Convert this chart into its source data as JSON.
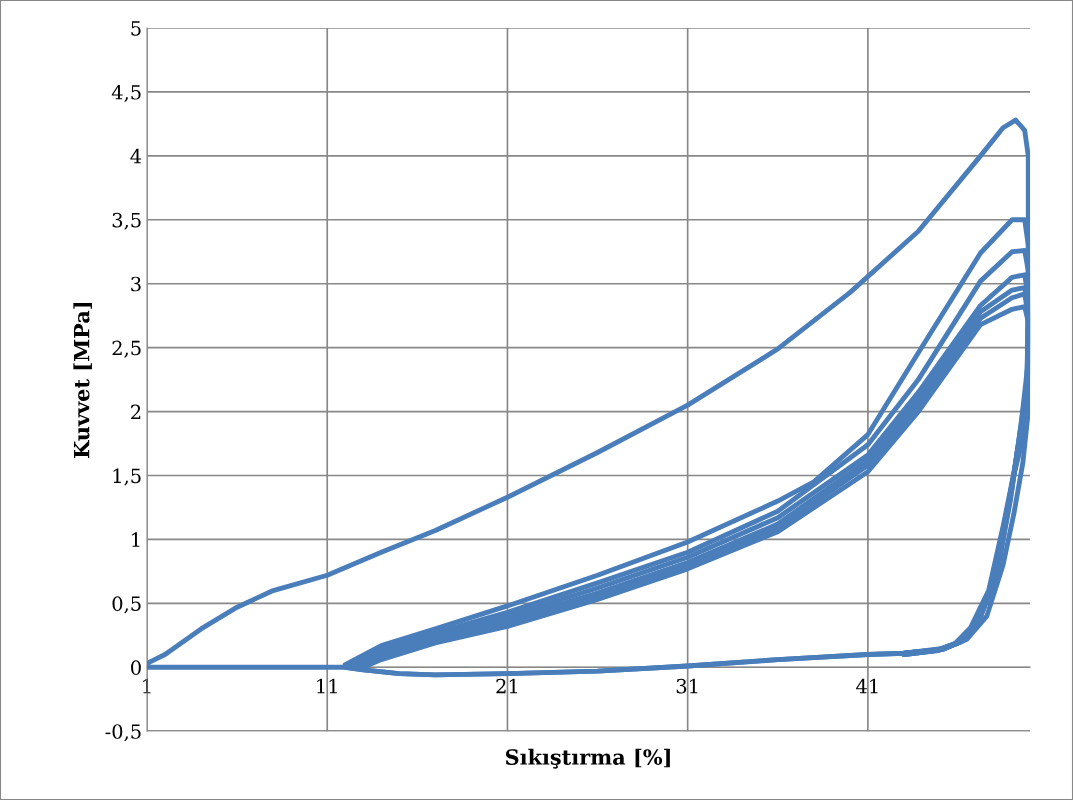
{
  "chart_data": {
    "type": "line",
    "xlabel": "Sıkıştırma [%]",
    "ylabel": "Kuvvet [MPa]",
    "xlim": [
      1,
      50
    ],
    "xticks": [
      1,
      11,
      21,
      31,
      41
    ],
    "ylim": [
      -0.5,
      5
    ],
    "yticks": [
      {
        "value": -0.5,
        "label": "-0,5"
      },
      0,
      {
        "value": 0.5,
        "label": "0,5"
      },
      1,
      {
        "value": 1.5,
        "label": "1,5"
      },
      2,
      {
        "value": 2.5,
        "label": "2,5"
      },
      3,
      {
        "value": 3.5,
        "label": "3,5"
      },
      4,
      {
        "value": 4.5,
        "label": "4,5"
      },
      5
    ],
    "grid": true,
    "marker": "none",
    "line_style": "solid",
    "series": [
      {
        "color": "#4a7ebb",
        "x": [
          1,
          2,
          4,
          6,
          8,
          11,
          14,
          17,
          21,
          26,
          31,
          36,
          40,
          43.8,
          47.25,
          48.5,
          49.2,
          49.7,
          49.9,
          49.9,
          49.6,
          49.1,
          48.5,
          47.6,
          46.5,
          45.3,
          43,
          41,
          36,
          31,
          26,
          21,
          17,
          15,
          13,
          12,
          11,
          1
        ],
        "values": [
          0.03,
          0.1,
          0.3,
          0.47,
          0.6,
          0.72,
          0.9,
          1.07,
          1.33,
          1.68,
          2.05,
          2.49,
          2.93,
          3.41,
          4.0,
          4.22,
          4.28,
          4.2,
          4.0,
          2.0,
          1.6,
          1.2,
          0.8,
          0.4,
          0.22,
          0.15,
          0.11,
          0.1,
          0.06,
          0.01,
          -0.03,
          -0.05,
          -0.06,
          -0.05,
          -0.02,
          0,
          0,
          0
        ]
      },
      {
        "color": "#4a7ebb",
        "x": [
          12,
          14,
          17,
          21,
          26,
          31,
          36,
          38,
          41,
          43.8,
          47.25,
          49,
          49.7,
          49.9,
          49.9,
          49.5,
          49,
          48.2,
          47.2,
          46.3,
          45.2,
          43,
          41,
          36,
          31,
          26,
          21,
          17,
          15,
          13,
          12
        ],
        "values": [
          0.02,
          0.17,
          0.3,
          0.48,
          0.72,
          0.98,
          1.3,
          1.45,
          1.82,
          2.46,
          3.24,
          3.5,
          3.5,
          3.3,
          2.4,
          1.9,
          1.4,
          0.75,
          0.37,
          0.21,
          0.14,
          0.11,
          0.1,
          0.06,
          0.01,
          -0.03,
          -0.05,
          -0.06,
          -0.05,
          -0.02,
          0
        ]
      },
      {
        "color": "#4a7ebb",
        "x": [
          12,
          14,
          17,
          21,
          26,
          31,
          36,
          41,
          43.8,
          47.25,
          49,
          49.7,
          49.9,
          49.9,
          49.4,
          48.9,
          48.1,
          47.1,
          46.2,
          45.1,
          43
        ],
        "values": [
          0.01,
          0.14,
          0.27,
          0.43,
          0.66,
          0.9,
          1.22,
          1.74,
          2.25,
          3.02,
          3.25,
          3.26,
          3.1,
          2.3,
          1.8,
          1.3,
          0.7,
          0.35,
          0.2,
          0.14,
          0.11
        ]
      },
      {
        "color": "#4a7ebb",
        "x": [
          12,
          14,
          17,
          21,
          26,
          31,
          36,
          41,
          43.8,
          47.25,
          49,
          49.7,
          49.9,
          49.9,
          49.3,
          48.8,
          48,
          47,
          46.1,
          45,
          43
        ],
        "values": [
          0.01,
          0.12,
          0.25,
          0.4,
          0.62,
          0.86,
          1.17,
          1.66,
          2.15,
          2.83,
          3.05,
          3.07,
          2.9,
          2.2,
          1.7,
          1.25,
          0.68,
          0.34,
          0.2,
          0.14,
          0.11
        ]
      },
      {
        "color": "#4a7ebb",
        "x": [
          12.5,
          14,
          17,
          21,
          26,
          31,
          36,
          41,
          43.8,
          47.25,
          49,
          49.7,
          49.9,
          49.8,
          49.2,
          48.7,
          47.9,
          46.9,
          46,
          44.9,
          43
        ],
        "values": [
          0,
          0.1,
          0.23,
          0.37,
          0.58,
          0.82,
          1.12,
          1.62,
          2.1,
          2.78,
          2.95,
          2.97,
          2.8,
          2.1,
          1.6,
          1.2,
          0.65,
          0.33,
          0.19,
          0.13,
          0.1
        ]
      },
      {
        "color": "#4a7ebb",
        "x": [
          13,
          14,
          17,
          21,
          26,
          31,
          36,
          41,
          43.8,
          47.25,
          49,
          49.7,
          49.9,
          49.8,
          49.1,
          48.6,
          47.8,
          46.8,
          45.9,
          44.8,
          43
        ],
        "values": [
          0,
          0.08,
          0.21,
          0.35,
          0.56,
          0.79,
          1.09,
          1.58,
          2.05,
          2.73,
          2.89,
          2.92,
          2.75,
          2.0,
          1.5,
          1.15,
          0.62,
          0.32,
          0.19,
          0.13,
          0.1
        ]
      },
      {
        "color": "#4a7ebb",
        "x": [
          13,
          14,
          17,
          21,
          26,
          31,
          36,
          41,
          43.8,
          47.25,
          49,
          49.7,
          49.9,
          49.8,
          49,
          48.5,
          47.7,
          46.7,
          45.8,
          44.7,
          43
        ],
        "values": [
          0,
          0.06,
          0.19,
          0.32,
          0.53,
          0.77,
          1.06,
          1.53,
          2.0,
          2.68,
          2.8,
          2.82,
          2.7,
          1.9,
          1.45,
          1.1,
          0.6,
          0.31,
          0.18,
          0.13,
          0.1
        ]
      }
    ]
  }
}
